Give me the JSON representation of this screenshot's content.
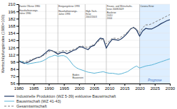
{
  "chart_data": {
    "type": "line",
    "ylabel": "Wertschöpfungsindex (1980=100)",
    "x": [
      1980,
      1981,
      1982,
      1983,
      1984,
      1985,
      1986,
      1987,
      1988,
      1989,
      1990,
      1991,
      1992,
      1993,
      1994,
      1995,
      1996,
      1997,
      1998,
      1999,
      2000,
      2001,
      2002,
      2003,
      2004,
      2005,
      2006,
      2007,
      2008,
      2009,
      2010,
      2011,
      2012,
      2013,
      2014,
      2015,
      2016,
      2017,
      2018,
      2019,
      2020,
      2021,
      2022,
      2023,
      2024,
      2025,
      2026,
      2027,
      2028,
      2029,
      2030
    ],
    "xlim": [
      1980,
      2030
    ],
    "xticks": [
      1980,
      1985,
      1990,
      1995,
      2000,
      2005,
      2010,
      2015,
      2020,
      2025,
      2030
    ],
    "ylim": [
      56,
      210
    ],
    "yticks": [
      56,
      70,
      84,
      98,
      112,
      126,
      140,
      154,
      168,
      182,
      196,
      210
    ],
    "grid": true,
    "legend": "bottom",
    "series": [
      {
        "name": "Industrielle Produktion (WZ 5-39) exklusive Bauwirtschaft",
        "color": "#1f3864",
        "line_style": "solid",
        "values": [
          100,
          97,
          95,
          97,
          100,
          103,
          106,
          107,
          111,
          116,
          121,
          120,
          117,
          113,
          116,
          117,
          114,
          117,
          120,
          122,
          127,
          127,
          124,
          122,
          128,
          130,
          138,
          144,
          143,
          125,
          135,
          142,
          141,
          140,
          143,
          148,
          154,
          162,
          165,
          160,
          148,
          158,
          163,
          162,
          162,
          165,
          168,
          172,
          175,
          178,
          180
        ]
      },
      {
        "name": "Bauwirtschaft (WZ 41-43)",
        "color": "#5ab4d6",
        "line_style": "solid",
        "values": [
          100,
          99,
          96,
          94,
          95,
          96,
          97,
          98,
          100,
          103,
          107,
          109,
          111,
          109,
          110,
          110,
          107,
          100,
          92,
          87,
          84,
          82,
          80,
          78,
          77,
          76,
          77,
          78,
          79,
          77,
          76,
          76,
          75,
          74,
          75,
          77,
          79,
          83,
          87,
          90,
          86,
          88,
          90,
          91,
          92,
          94,
          96,
          98,
          100,
          102,
          104
        ]
      },
      {
        "name": "Gesamtwirtschaft",
        "color": "#808080",
        "line_style": "dashed",
        "values": [
          100,
          99,
          98,
          100,
          102,
          104,
          106,
          107,
          110,
          113,
          118,
          119,
          118,
          116,
          119,
          120,
          119,
          120,
          122,
          124,
          128,
          129,
          127,
          126,
          130,
          131,
          136,
          141,
          142,
          133,
          139,
          144,
          144,
          143,
          147,
          151,
          156,
          162,
          165,
          162,
          154,
          164,
          170,
          170,
          172,
          175,
          178,
          181,
          184,
          187,
          190
        ]
      }
    ],
    "shaded_region": {
      "start": 2020,
      "end": 2030,
      "label": "Prognose",
      "color": "#ddeeff"
    },
    "vlines": [
      1980,
      1989,
      1993,
      2002,
      2009,
      2020
    ],
    "annotations": [
      {
        "x": 1980.2,
        "y": 208,
        "text": "Zweite Ölkrise 1980"
      },
      {
        "x": 1980.2,
        "y": 200,
        "text": "Haushaltsierungs-\nJahre 1980"
      },
      {
        "x": 1993.2,
        "y": 208,
        "text": "Einigungskrise 1993"
      },
      {
        "x": 1993.2,
        "y": 199,
        "text": "Haushaltsierungs-\nJahre 1993"
      },
      {
        "x": 2002.2,
        "y": 199,
        "text": "High-Tech-\nKrise\n2002/2003"
      },
      {
        "x": 2009.2,
        "y": 208,
        "text": "Finanz- und Wirtschafts-\nkrise 2008/2009"
      },
      {
        "x": 2009.2,
        "y": 196,
        "text": "Baukrise\n2011/\n2014"
      },
      {
        "x": 2020.2,
        "y": 208,
        "text": "Corona Krise"
      },
      {
        "x": 1997.8,
        "y": 75,
        "text": "Boden\nBauwesen"
      }
    ]
  }
}
